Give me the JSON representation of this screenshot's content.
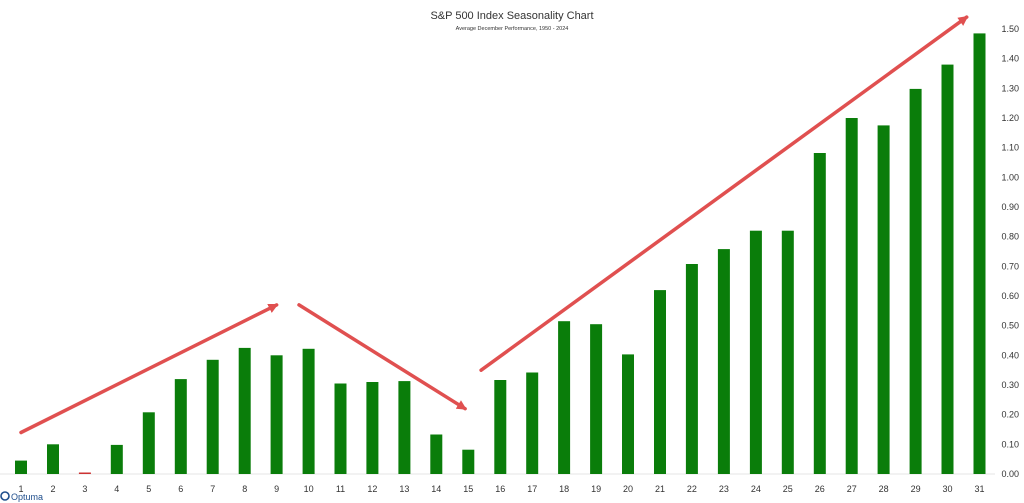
{
  "chart_data": {
    "type": "bar",
    "title": "S&P 500 Index Seasonality Chart",
    "subtitle": "Average December Performance, 1950 - 2024",
    "categories": [
      "1",
      "2",
      "3",
      "4",
      "5",
      "6",
      "7",
      "8",
      "9",
      "10",
      "11",
      "12",
      "13",
      "14",
      "15",
      "16",
      "17",
      "18",
      "19",
      "20",
      "21",
      "22",
      "23",
      "24",
      "25",
      "26",
      "27",
      "28",
      "29",
      "30",
      "31"
    ],
    "values": [
      0.045,
      0.1,
      -0.005,
      0.098,
      0.208,
      0.32,
      0.385,
      0.425,
      0.4,
      0.422,
      0.305,
      0.31,
      0.313,
      0.133,
      0.082,
      0.317,
      0.342,
      0.515,
      0.505,
      0.403,
      0.62,
      0.708,
      0.758,
      0.82,
      0.82,
      1.082,
      1.2,
      1.175,
      1.298,
      1.38,
      1.485
    ],
    "ylim": [
      0,
      1.5
    ],
    "yticks": [
      "0.00",
      "0.10",
      "0.20",
      "0.30",
      "0.40",
      "0.50",
      "0.60",
      "0.70",
      "0.80",
      "0.90",
      "1.00",
      "1.10",
      "1.20",
      "1.30",
      "1.40",
      "1.50"
    ],
    "y_axis_side": "right",
    "grid": false,
    "colors": {
      "positive": "#0a7d0a",
      "negative": "#cc3333",
      "arrows": "#e05050"
    },
    "annotations": [
      {
        "type": "arrow",
        "from": {
          "x": "1",
          "y": 0.14
        },
        "to": {
          "x": "9",
          "y": 0.57
        }
      },
      {
        "type": "arrow",
        "from": {
          "x": "9.7",
          "y": 0.57
        },
        "to": {
          "x": "14.9",
          "y": 0.22
        }
      },
      {
        "type": "arrow",
        "from": {
          "x": "15.4",
          "y": 0.35
        },
        "to": {
          "x": "30.6",
          "y": 1.54
        }
      }
    ]
  },
  "branding": {
    "logo_text": "Optuma"
  }
}
